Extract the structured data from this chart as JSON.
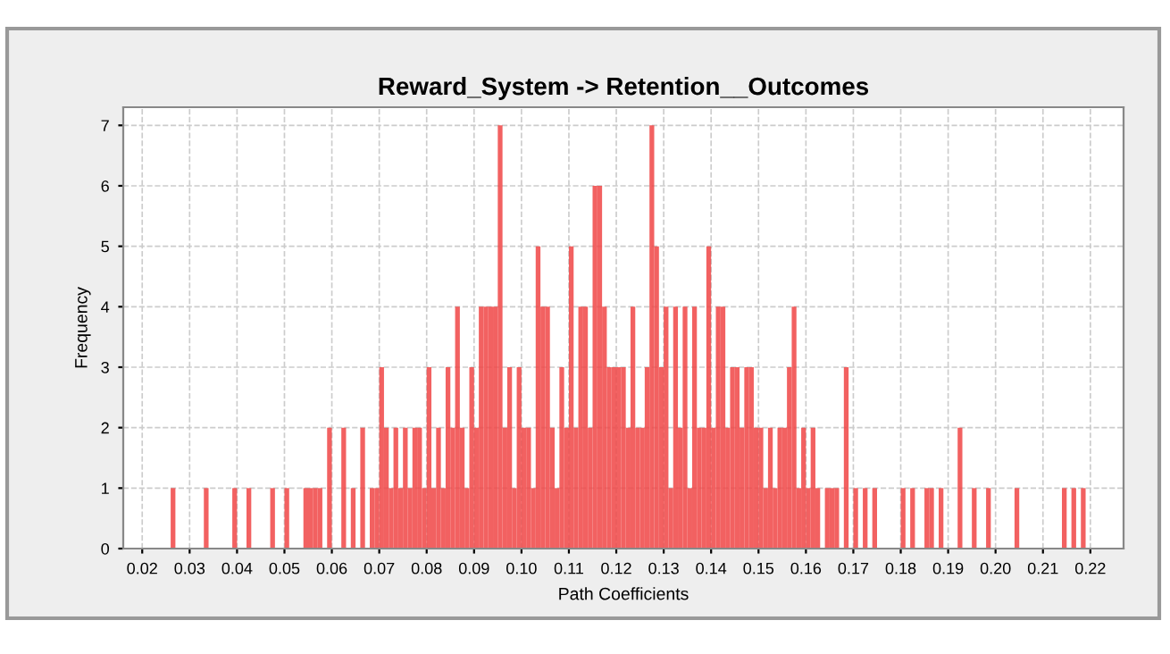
{
  "chart_data": {
    "type": "histogram",
    "title": "Reward_System -> Retention__Outcomes",
    "xlabel": "Path Coefficients",
    "ylabel": "Frequency",
    "bins": [
      0.02,
      0.021,
      0.022,
      0.023,
      0.024,
      0.025,
      0.026,
      0.027,
      0.028,
      0.029,
      0.03,
      0.031,
      0.032,
      0.033,
      0.034,
      0.035,
      0.036,
      0.037,
      0.038,
      0.039,
      0.04,
      0.041,
      0.042,
      0.043,
      0.044,
      0.045,
      0.046,
      0.047,
      0.048,
      0.049,
      0.05,
      0.051,
      0.052,
      0.053,
      0.054,
      0.055,
      0.056,
      0.057,
      0.058,
      0.059,
      0.06,
      0.061,
      0.062,
      0.063,
      0.064,
      0.065,
      0.066,
      0.067,
      0.068,
      0.069,
      0.07,
      0.071,
      0.072,
      0.073,
      0.074,
      0.075,
      0.076,
      0.077,
      0.078,
      0.079,
      0.08,
      0.081,
      0.082,
      0.083,
      0.084,
      0.085,
      0.086,
      0.087,
      0.088,
      0.089,
      0.09,
      0.091,
      0.092,
      0.093,
      0.094,
      0.095,
      0.096,
      0.097,
      0.098,
      0.099,
      0.1,
      0.101,
      0.102,
      0.103,
      0.104,
      0.105,
      0.106,
      0.107,
      0.108,
      0.109,
      0.11,
      0.111,
      0.112,
      0.113,
      0.114,
      0.115,
      0.116,
      0.117,
      0.118,
      0.119,
      0.12,
      0.121,
      0.122,
      0.123,
      0.124,
      0.125,
      0.126,
      0.127,
      0.128,
      0.129,
      0.13,
      0.131,
      0.132,
      0.133,
      0.134,
      0.135,
      0.136,
      0.137,
      0.138,
      0.139,
      0.14,
      0.141,
      0.142,
      0.143,
      0.144,
      0.145,
      0.146,
      0.147,
      0.148,
      0.149,
      0.15,
      0.151,
      0.152,
      0.153,
      0.154,
      0.155,
      0.156,
      0.157,
      0.158,
      0.159,
      0.16,
      0.161,
      0.162,
      0.163,
      0.164,
      0.165,
      0.166,
      0.167,
      0.168,
      0.169,
      0.17,
      0.171,
      0.172,
      0.173,
      0.174,
      0.175,
      0.176,
      0.177,
      0.178,
      0.179,
      0.18,
      0.181,
      0.182,
      0.183,
      0.184,
      0.185,
      0.186,
      0.187,
      0.188,
      0.189,
      0.19,
      0.191,
      0.192,
      0.193,
      0.194,
      0.195,
      0.196,
      0.197,
      0.198,
      0.199,
      0.2,
      0.201,
      0.202,
      0.203,
      0.204,
      0.205,
      0.206,
      0.207,
      0.208,
      0.209,
      0.21,
      0.211,
      0.212,
      0.213,
      0.214,
      0.215,
      0.216,
      0.217,
      0.218,
      0.219,
      0.22,
      0.221,
      0.222
    ],
    "values": [
      0,
      0,
      0,
      0,
      0,
      0,
      1,
      0,
      0,
      0,
      0,
      0,
      0,
      1,
      0,
      0,
      0,
      0,
      0,
      1,
      0,
      0,
      1,
      0,
      0,
      0,
      0,
      1,
      0,
      0,
      1,
      0,
      0,
      0,
      1,
      1,
      1,
      1,
      0,
      2,
      0,
      0,
      2,
      0,
      1,
      0,
      2,
      0,
      1,
      1,
      3,
      2,
      1,
      2,
      1,
      2,
      1,
      2,
      2,
      1,
      3,
      1,
      2,
      1,
      3,
      2,
      4,
      2,
      1,
      3,
      2,
      4,
      4,
      4,
      4,
      7,
      2,
      3,
      1,
      3,
      2,
      2,
      1,
      5,
      4,
      4,
      2,
      1,
      3,
      2,
      5,
      2,
      4,
      4,
      2,
      6,
      6,
      4,
      3,
      3,
      3,
      3,
      2,
      4,
      2,
      2,
      3,
      7,
      5,
      3,
      4,
      1,
      4,
      2,
      4,
      1,
      4,
      2,
      2,
      5,
      2,
      4,
      4,
      2,
      3,
      3,
      2,
      3,
      3,
      2,
      2,
      1,
      2,
      1,
      2,
      2,
      3,
      4,
      1,
      2,
      1,
      2,
      1,
      0,
      1,
      1,
      1,
      0,
      3,
      0,
      1,
      0,
      1,
      0,
      1,
      0,
      0,
      0,
      0,
      0,
      1,
      0,
      1,
      0,
      0,
      1,
      1,
      0,
      1,
      0,
      0,
      0,
      2,
      0,
      0,
      1,
      0,
      0,
      1,
      0,
      0,
      0,
      0,
      0,
      1,
      0,
      0,
      0,
      0,
      0,
      0,
      0,
      0,
      0,
      1,
      0,
      1,
      0,
      1,
      0,
      0,
      0
    ],
    "color": "#f04545",
    "xlim": [
      0.016,
      0.227
    ],
    "ylim": [
      0,
      7.3
    ],
    "xticks": [
      0.02,
      0.03,
      0.04,
      0.05,
      0.06,
      0.07,
      0.08,
      0.09,
      {
        "value": 0.1,
        "label": "0.10"
      },
      0.11,
      0.12,
      0.13,
      0.14,
      0.15,
      0.16,
      0.17,
      0.18,
      0.19,
      {
        "value": 0.2,
        "label": "0.20"
      },
      0.21,
      0.22
    ],
    "yticks": [
      0,
      1,
      2,
      3,
      4,
      5,
      6,
      7
    ],
    "grid": true
  }
}
